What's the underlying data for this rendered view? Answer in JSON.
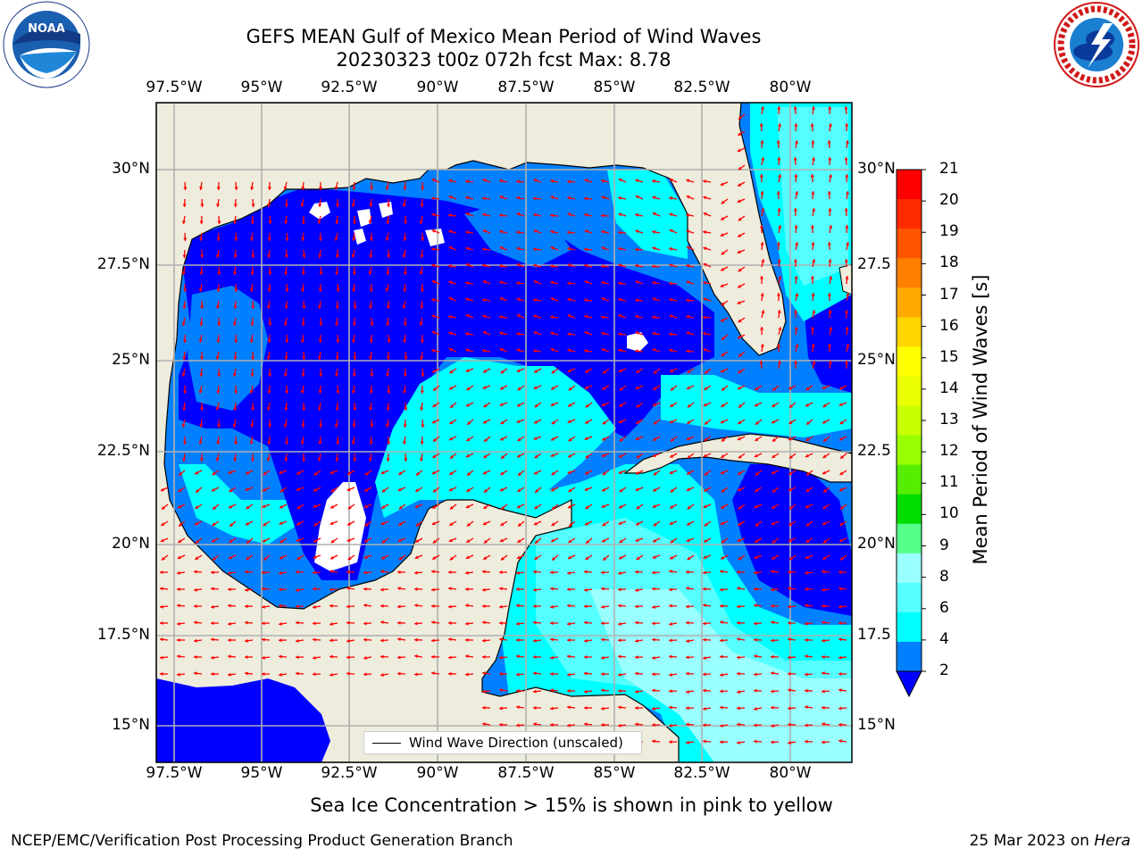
{
  "title_line1": "GEFS MEAN Gulf of Mexico Mean Period of Wind Waves",
  "title_line2": "20230323 t00z 072h fcst   Max: 8.78",
  "lon_labels": [
    "97.5°W",
    "95°W",
    "92.5°W",
    "90°W",
    "87.5°W",
    "85°W",
    "82.5°W",
    "80°W"
  ],
  "lat_labels_left": [
    "30°N",
    "27.5°N",
    "25°N",
    "22.5°N",
    "20°N",
    "17.5°N",
    "15°N"
  ],
  "lat_labels_right": [
    "30°N",
    "27.5",
    "25°N",
    "22.5",
    "20°N",
    "17.5",
    "15°N"
  ],
  "legend_label": "Wind Wave Direction (unscaled)",
  "colorbar": {
    "label": "Mean Period of Wind Waves [s]",
    "ticks": [
      "21",
      "20",
      "19",
      "18",
      "17",
      "16",
      "15",
      "14",
      "13",
      "12",
      "11",
      "10",
      "9",
      "8",
      "6",
      "4",
      "2"
    ],
    "colors": [
      "#ff0000",
      "#ff2a00",
      "#ff5500",
      "#ff8000",
      "#ffaa00",
      "#ffd500",
      "#ffff00",
      "#eaff00",
      "#c8ff00",
      "#99ff00",
      "#55ee00",
      "#00dd00",
      "#55ff88",
      "#99ffff",
      "#55ffff",
      "#00ffff",
      "#0080ff"
    ],
    "extend_color": "#0000ff"
  },
  "sea_ice_note": "Sea Ice Concentration > 15% is shown in pink to yellow",
  "footer_left": "NCEP/EMC/Verification Post Processing Product Generation Branch",
  "footer_right_date": "25 Mar 2023 on",
  "footer_right_host": "Hera",
  "logos": {
    "left": "NOAA",
    "right": "NATIONAL WEATHER SERVICE"
  },
  "colors": {
    "land": "#eeecdc",
    "grid": "#b0b0b0",
    "arrow": "#ff0000"
  }
}
